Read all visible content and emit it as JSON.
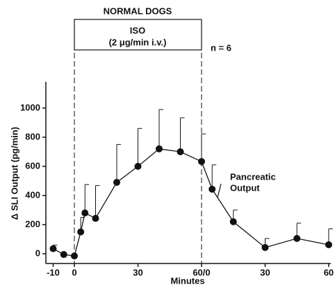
{
  "chart_data": {
    "type": "line",
    "header": "NORMAL DOGS",
    "box_title": "ISO",
    "box_subtitle": "(2 μg/min i.v.)",
    "sample_size": "n = 6",
    "annotation": [
      "Pancreatic",
      "Output"
    ],
    "xlabel": "Minutes",
    "ylabel": "Δ SLI Output (pg/min)",
    "x": [
      -10,
      -5,
      0,
      3,
      5,
      10,
      20,
      30,
      40,
      50,
      60,
      65,
      75,
      90,
      105,
      120
    ],
    "series": [
      {
        "color": "#111111",
        "values": [
          35,
          -5,
          -15,
          150,
          280,
          243,
          490,
          600,
          720,
          700,
          633,
          443,
          220,
          43,
          105,
          62
        ],
        "errors": [
          25,
          0,
          0,
          100,
          195,
          225,
          260,
          260,
          270,
          233,
          190,
          167,
          80,
          62,
          105,
          110
        ]
      }
    ],
    "xlim": [
      -14,
      121
    ],
    "xticks": [
      -10,
      0,
      30,
      {
        "value": 60,
        "label": "60/0"
      },
      {
        "value": 90,
        "label": "30"
      },
      {
        "value": 120,
        "label": "60"
      }
    ],
    "ylim": [
      -70,
      1180
    ],
    "yticks": [
      0,
      200,
      400,
      600,
      800,
      1000
    ]
  }
}
